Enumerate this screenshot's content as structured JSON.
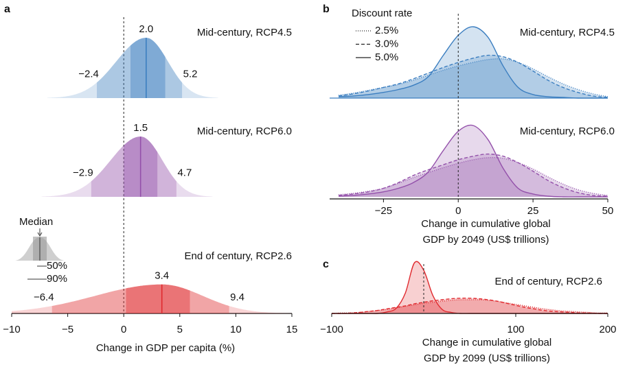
{
  "chart_data": [
    {
      "type": "ridgeline",
      "panel": "a",
      "xlabel": "Change in GDP per capita (%)",
      "xlim": [
        -10,
        15
      ],
      "xticks": [
        {
          "value": -10,
          "label": "−10"
        },
        {
          "value": -5,
          "label": "−5"
        },
        0,
        5,
        10,
        15
      ],
      "reference_line": 0,
      "ridges": [
        {
          "title": "Mid-century, RCP4.5",
          "color": "#3b7ec0",
          "q05": -2.4,
          "q25": 0.6,
          "q50": 2.0,
          "q75": 3.7,
          "q95": 5.2,
          "value_labels": {
            "q05": "−2.4",
            "q50": "2.0",
            "q95": "5.2"
          }
        },
        {
          "title": "Mid-century, RCP6.0",
          "color": "#9350aa",
          "q05": -2.9,
          "q25": 0.0,
          "q50": 1.5,
          "q75": 3.0,
          "q95": 4.7,
          "value_labels": {
            "q05": "−2.9",
            "q50": "1.5",
            "q95": "4.7"
          }
        },
        {
          "title": "End of century, RCP2.6",
          "color": "#e02a2f",
          "q05": -6.4,
          "q25": 0.2,
          "q50": 3.4,
          "q75": 5.9,
          "q95": 9.4,
          "value_labels": {
            "q05": "−6.4",
            "q50": "3.4",
            "q95": "9.4"
          }
        }
      ],
      "legend": {
        "median": "Median",
        "iqr": "50%",
        "range": "90%"
      }
    },
    {
      "type": "density",
      "panel": "b",
      "xlabel": [
        "Change in cumulative global",
        "GDP by 2049 (US$ trillions)"
      ],
      "xlim": [
        -43,
        50
      ],
      "xticks": [
        {
          "value": -25,
          "label": "−25"
        },
        0,
        25,
        50
      ],
      "reference_line": 0,
      "legend": {
        "title": "Discount rate",
        "entries": [
          {
            "name": "2.5%",
            "dash": "1,2"
          },
          {
            "name": "3.0%",
            "dash": "5,3"
          },
          {
            "name": "5.0%",
            "dash": "none"
          }
        ]
      },
      "x": [
        -40,
        -35,
        -30,
        -25,
        -20,
        -15,
        -10,
        -5,
        0,
        5,
        10,
        15,
        20,
        25,
        30,
        35,
        40,
        45,
        50
      ],
      "ridges": [
        {
          "title": "Mid-century, RCP4.5",
          "color": "#3b7ec0",
          "series": [
            {
              "values": [
                0.04,
                0.07,
                0.11,
                0.15,
                0.19,
                0.25,
                0.32,
                0.39,
                0.45,
                0.5,
                0.54,
                0.55,
                0.5,
                0.41,
                0.3,
                0.2,
                0.12,
                0.06,
                0.02
              ]
            },
            {
              "values": [
                0.03,
                0.06,
                0.1,
                0.15,
                0.2,
                0.27,
                0.35,
                0.43,
                0.5,
                0.56,
                0.6,
                0.58,
                0.5,
                0.38,
                0.25,
                0.15,
                0.08,
                0.03,
                0.01
              ]
            },
            {
              "values": [
                0.02,
                0.03,
                0.05,
                0.08,
                0.12,
                0.18,
                0.3,
                0.6,
                0.88,
                1.0,
                0.85,
                0.45,
                0.15,
                0.05,
                0.02,
                0.01,
                0,
                0,
                0
              ]
            }
          ]
        },
        {
          "title": "Mid-century, RCP6.0",
          "color": "#9350aa",
          "series": [
            {
              "values": [
                0.03,
                0.05,
                0.08,
                0.12,
                0.19,
                0.27,
                0.34,
                0.41,
                0.47,
                0.52,
                0.55,
                0.54,
                0.48,
                0.39,
                0.28,
                0.18,
                0.1,
                0.05,
                0.02
              ]
            },
            {
              "values": [
                0.02,
                0.04,
                0.07,
                0.12,
                0.2,
                0.3,
                0.38,
                0.45,
                0.52,
                0.57,
                0.6,
                0.57,
                0.48,
                0.36,
                0.23,
                0.13,
                0.06,
                0.02,
                0.01
              ]
            },
            {
              "values": [
                0.01,
                0.02,
                0.04,
                0.07,
                0.12,
                0.2,
                0.35,
                0.65,
                0.92,
                1.0,
                0.8,
                0.4,
                0.12,
                0.04,
                0.01,
                0,
                0,
                0,
                0
              ]
            }
          ]
        }
      ]
    },
    {
      "type": "density",
      "panel": "c",
      "xlabel": [
        "Change in cumulative global",
        "GDP by 2099 (US$ trillions)"
      ],
      "xlim": [
        -100,
        200
      ],
      "xticks": [
        {
          "value": -100,
          "label": "−100"
        },
        100,
        200
      ],
      "reference_line": 0,
      "x": [
        -100,
        -90,
        -80,
        -70,
        -60,
        -50,
        -40,
        -30,
        -20,
        -10,
        0,
        10,
        20,
        30,
        40,
        50,
        60,
        70,
        80,
        90,
        100,
        110,
        120,
        130,
        140,
        150,
        160,
        170,
        180,
        190,
        200
      ],
      "ridges": [
        {
          "title": "End of century, RCP2.6",
          "color": "#e02a2f",
          "series": [
            {
              "dash": "1,2",
              "values": [
                0,
                0.01,
                0.01,
                0.02,
                0.04,
                0.06,
                0.08,
                0.11,
                0.14,
                0.17,
                0.2,
                0.22,
                0.24,
                0.26,
                0.27,
                0.27,
                0.27,
                0.26,
                0.24,
                0.21,
                0.18,
                0.15,
                0.12,
                0.09,
                0.07,
                0.05,
                0.04,
                0.03,
                0.02,
                0.01,
                0.01
              ]
            },
            {
              "dash": "5,3",
              "values": [
                0,
                0,
                0.01,
                0.02,
                0.04,
                0.06,
                0.09,
                0.12,
                0.15,
                0.19,
                0.22,
                0.25,
                0.27,
                0.29,
                0.3,
                0.3,
                0.29,
                0.27,
                0.24,
                0.2,
                0.16,
                0.12,
                0.09,
                0.06,
                0.04,
                0.03,
                0.02,
                0.01,
                0.01,
                0,
                0
              ]
            },
            {
              "dash": "none",
              "values": [
                0,
                0,
                0,
                0,
                0,
                0,
                0.03,
                0.1,
                0.4,
                1.0,
                0.85,
                0.35,
                0.08,
                0.02,
                0,
                0,
                0,
                0,
                0,
                0,
                0,
                0,
                0,
                0,
                0,
                0,
                0,
                0,
                0,
                0,
                0
              ]
            }
          ]
        }
      ]
    }
  ]
}
